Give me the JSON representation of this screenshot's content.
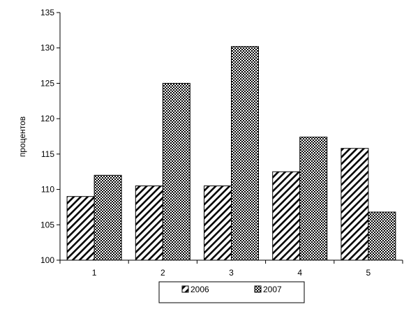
{
  "chart_data": {
    "type": "bar",
    "title": "",
    "xlabel": "",
    "ylabel": "процентов",
    "categories": [
      "1",
      "2",
      "3",
      "4",
      "5"
    ],
    "series": [
      {
        "name": "2006",
        "values": [
          109,
          110.5,
          110.5,
          112.5,
          115.8
        ],
        "pattern": "diagonal-hatch"
      },
      {
        "name": "2007",
        "values": [
          112,
          125,
          130.2,
          117.4,
          106.8
        ],
        "pattern": "crosshatch"
      }
    ],
    "ylim": [
      100,
      135
    ],
    "yticks": [
      "100",
      "105",
      "110",
      "115",
      "120",
      "125",
      "130",
      "135"
    ],
    "grid": false,
    "legend": "bottom",
    "colors": {
      "bar_fill": "#ffffff",
      "pattern": "#000000",
      "stroke": "#000000"
    }
  }
}
